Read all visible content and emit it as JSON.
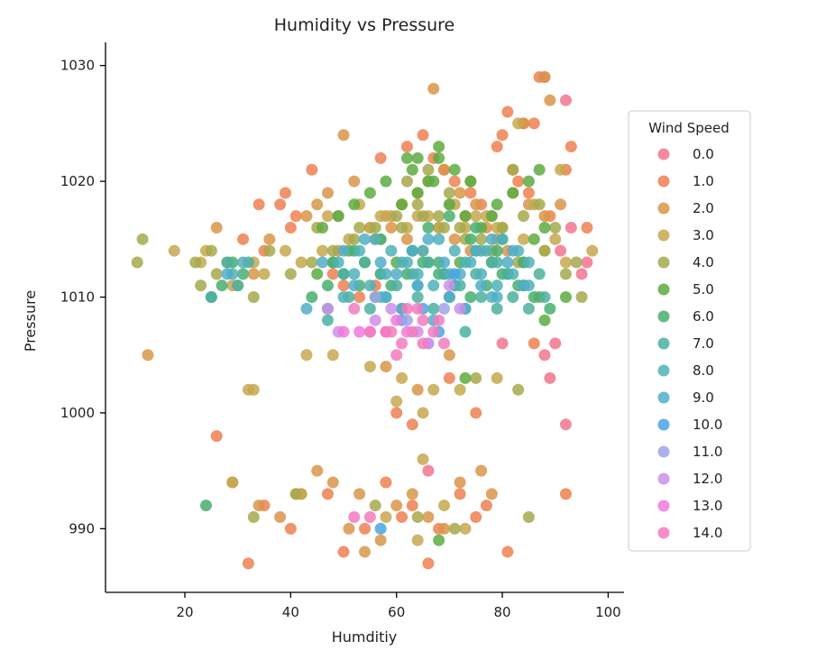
{
  "chart_data": {
    "type": "scatter",
    "title": "Humidity vs Pressure",
    "xlabel": "Humditiy",
    "ylabel": "Pressure",
    "xlim": [
      5,
      103
    ],
    "ylim": [
      984.5,
      1032
    ],
    "xticks": [
      "20",
      "40",
      "60",
      "80",
      "100"
    ],
    "yticks": [
      "990",
      "1000",
      "1010",
      "1020",
      "1030"
    ],
    "grid": false,
    "legend": {
      "title": "Wind Speed",
      "placement": "right"
    },
    "series": [
      {
        "name": "0.0",
        "color": "#f2758e",
        "x": [
          92,
          93,
          91,
          96,
          90,
          95,
          88,
          89,
          92,
          70,
          80,
          66
        ],
        "y": [
          1027,
          1016,
          1014,
          1013,
          1006,
          1012,
          1005,
          1003,
          999,
          1010,
          1006,
          995
        ]
      },
      {
        "name": "1.0",
        "color": "#ef8051",
        "x": [
          87,
          88,
          81,
          84,
          86,
          93,
          92,
          34,
          38,
          39,
          40,
          41,
          44,
          35,
          31,
          57,
          62,
          65,
          67,
          69,
          71,
          74,
          73,
          76,
          79,
          80,
          82,
          83,
          85,
          89,
          48,
          50,
          53,
          56,
          26,
          32,
          35,
          40,
          47,
          50,
          54,
          58,
          61,
          63,
          66,
          68,
          72,
          75,
          77,
          81,
          63,
          70,
          86,
          75,
          60,
          92,
          96
        ],
        "y": [
          1029,
          1029,
          1026,
          1025,
          1025,
          1023,
          1021,
          1018,
          1018,
          1019,
          1016,
          1017,
          1021,
          1014,
          1015,
          1022,
          1023,
          1024,
          1022,
          1021,
          1020,
          1019,
          1017,
          1018,
          1023,
          1024,
          1021,
          1020,
          1019,
          1017,
          1012,
          1011,
          1010,
          1011,
          998,
          987,
          992,
          990,
          993,
          988,
          990,
          994,
          991,
          992,
          987,
          990,
          993,
          991,
          992,
          988,
          999,
          1003,
          1006,
          1000,
          1000,
          993,
          1016
        ]
      },
      {
        "name": "2.0",
        "color": "#d9954a",
        "x": [
          67,
          88,
          89,
          91,
          84,
          50,
          13,
          33,
          36,
          26,
          43,
          45,
          47,
          52,
          55,
          58,
          61,
          64,
          66,
          69,
          72,
          75,
          78,
          82,
          85,
          88,
          49,
          56,
          59,
          62,
          65,
          68,
          71,
          74,
          77,
          79,
          81,
          84,
          29,
          42,
          45,
          51,
          54,
          57,
          60,
          63,
          66,
          69,
          72,
          76,
          78,
          34,
          38,
          41,
          48,
          53,
          58,
          64,
          70
        ],
        "y": [
          1028,
          1029,
          1027,
          1018,
          1025,
          1024,
          1005,
          1012,
          1015,
          1016,
          1017,
          1018,
          1019,
          1020,
          1016,
          1017,
          1018,
          1019,
          1020,
          1021,
          1019,
          1018,
          1017,
          1019,
          1018,
          1017,
          1014,
          1015,
          1016,
          1015,
          1014,
          1016,
          1015,
          1014,
          1016,
          1015,
          1014,
          1013,
          994,
          993,
          995,
          990,
          988,
          989,
          992,
          993,
          991,
          990,
          994,
          995,
          993,
          992,
          991,
          993,
          994,
          993,
          1004,
          1002,
          1005
        ]
      },
      {
        "name": "3.0",
        "color": "#c5a84f",
        "x": [
          83,
          91,
          18,
          23,
          24,
          29,
          33,
          35,
          39,
          42,
          46,
          51,
          55,
          59,
          62,
          66,
          70,
          73,
          77,
          80,
          84,
          88,
          92,
          97,
          47,
          53,
          57,
          61,
          64,
          68,
          71,
          75,
          79,
          86,
          90,
          32,
          43,
          60,
          65,
          72,
          79,
          58,
          64,
          69,
          73,
          29,
          42,
          48,
          55,
          61,
          67,
          33,
          65
        ],
        "y": [
          1025,
          1021,
          1014,
          1013,
          1014,
          1011,
          1013,
          1012,
          1014,
          1013,
          1014,
          1015,
          1016,
          1017,
          1016,
          1017,
          1018,
          1016,
          1017,
          1016,
          1015,
          1014,
          1013,
          1014,
          1017,
          1018,
          1017,
          1018,
          1017,
          1016,
          1018,
          1017,
          1016,
          1018,
          1015,
          1002,
          1005,
          1001,
          1000,
          1002,
          1003,
          991,
          989,
          992,
          990,
          994,
          993,
          1005,
          1004,
          1003,
          1002,
          1002,
          996
        ]
      },
      {
        "name": "4.0",
        "color": "#a6a94b",
        "x": [
          12,
          11,
          22,
          23,
          25,
          26,
          28,
          30,
          33,
          36,
          40,
          44,
          48,
          52,
          56,
          60,
          64,
          68,
          72,
          76,
          80,
          84,
          87,
          90,
          94,
          45,
          49,
          53,
          57,
          61,
          65,
          69,
          73,
          78,
          83,
          88,
          92,
          95,
          62,
          66,
          70,
          74,
          82,
          33,
          41,
          56,
          64,
          71,
          85,
          83,
          75
        ],
        "y": [
          1015,
          1013,
          1013,
          1011,
          1014,
          1012,
          1013,
          1011,
          1010,
          1014,
          1012,
          1013,
          1014,
          1015,
          1016,
          1017,
          1018,
          1017,
          1016,
          1015,
          1016,
          1017,
          1018,
          1016,
          1013,
          1016,
          1017,
          1016,
          1015,
          1016,
          1017,
          1016,
          1015,
          1014,
          1013,
          1014,
          1012,
          1010,
          1020,
          1021,
          1019,
          1020,
          1021,
          991,
          993,
          992,
          991,
          990,
          991,
          1002,
          1003
        ]
      },
      {
        "name": "5.0",
        "color": "#5eac41",
        "x": [
          62,
          63,
          66,
          68,
          46,
          49,
          52,
          55,
          58,
          61,
          64,
          67,
          70,
          73,
          76,
          79,
          82,
          85,
          87,
          88,
          45,
          48,
          51,
          54,
          57,
          60,
          63,
          66,
          69,
          72,
          75,
          78,
          81,
          84,
          87,
          64,
          68,
          71,
          74,
          86,
          88,
          78,
          92,
          73,
          68
        ],
        "y": [
          1022,
          1021,
          1020,
          1022,
          1016,
          1017,
          1018,
          1019,
          1020,
          1018,
          1019,
          1020,
          1018,
          1017,
          1016,
          1018,
          1019,
          1020,
          1021,
          1016,
          1012,
          1013,
          1014,
          1013,
          1012,
          1013,
          1014,
          1013,
          1012,
          1013,
          1014,
          1013,
          1012,
          1011,
          1010,
          1022,
          1023,
          1021,
          1020,
          1015,
          1008,
          1017,
          1010,
          1003,
          989
        ]
      },
      {
        "name": "6.0",
        "color": "#48af6e",
        "x": [
          24,
          25,
          27,
          29,
          31,
          44,
          47,
          50,
          53,
          56,
          59,
          62,
          65,
          68,
          71,
          74,
          77,
          80,
          83,
          86,
          89,
          48,
          52,
          57,
          63,
          68,
          74,
          79,
          84,
          66,
          70,
          75,
          80
        ],
        "y": [
          992,
          1010,
          1011,
          1013,
          1012,
          1010,
          1011,
          1012,
          1011,
          1010,
          1011,
          1012,
          1013,
          1012,
          1011,
          1010,
          1011,
          1012,
          1011,
          1010,
          1009,
          1013,
          1014,
          1015,
          1014,
          1013,
          1015,
          1014,
          1013,
          1016,
          1017,
          1016,
          1015
        ]
      },
      {
        "name": "7.0",
        "color": "#4cb0a0",
        "x": [
          25,
          28,
          30,
          32,
          47,
          51,
          55,
          58,
          61,
          64,
          67,
          70,
          73,
          76,
          79,
          82,
          85,
          88,
          50,
          54,
          57,
          60,
          63,
          66,
          69,
          72,
          75,
          78,
          81,
          84,
          87,
          73,
          47,
          76,
          79
        ],
        "y": [
          1010,
          1013,
          1011,
          1013,
          1009,
          1010,
          1009,
          1010,
          1009,
          1010,
          1009,
          1010,
          1009,
          1010,
          1009,
          1010,
          1009,
          1010,
          1012,
          1013,
          1012,
          1011,
          1012,
          1013,
          1012,
          1011,
          1012,
          1013,
          1012,
          1011,
          1012,
          1007,
          1008,
          1014,
          1013
        ]
      },
      {
        "name": "8.0",
        "color": "#4fb1b8",
        "x": [
          29,
          31,
          49,
          52,
          55,
          58,
          61,
          64,
          67,
          70,
          73,
          76,
          79,
          82,
          85,
          53,
          56,
          59,
          62,
          65,
          68,
          71,
          74,
          77,
          80,
          83,
          50,
          57,
          64,
          71,
          78,
          85
        ],
        "y": [
          1012,
          1013,
          1013,
          1012,
          1011,
          1012,
          1013,
          1012,
          1011,
          1012,
          1013,
          1012,
          1011,
          1012,
          1013,
          1014,
          1015,
          1014,
          1013,
          1014,
          1015,
          1014,
          1013,
          1014,
          1015,
          1014,
          1010,
          1010,
          1011,
          1011,
          1010,
          1011
        ]
      },
      {
        "name": "9.0",
        "color": "#51aec9",
        "x": [
          28,
          43,
          46,
          50,
          54,
          57,
          60,
          63,
          66,
          69,
          72,
          75,
          78,
          81,
          84,
          52,
          58,
          64,
          70,
          76,
          82,
          61,
          67,
          73,
          79
        ],
        "y": [
          1012,
          1009,
          1013,
          1014,
          1015,
          1013,
          1012,
          1014,
          1015,
          1013,
          1012,
          1014,
          1015,
          1013,
          1011,
          1011,
          1010,
          1011,
          1010,
          1011,
          1014,
          1009,
          1008,
          1009,
          1010
        ]
      },
      {
        "name": "10.0",
        "color": "#4ba4e2",
        "x": [
          57,
          61,
          65,
          68,
          71
        ],
        "y": [
          990,
          1008,
          1009,
          1007,
          1012
        ]
      },
      {
        "name": "11.0",
        "color": "#9fa5e8",
        "x": [
          62,
          66,
          69,
          56
        ],
        "y": [
          1008,
          1006,
          1009,
          1010
        ]
      },
      {
        "name": "12.0",
        "color": "#cc8fe9",
        "x": [
          47,
          49,
          64,
          66,
          70,
          72,
          56,
          59
        ],
        "y": [
          1009,
          1007,
          1007,
          1006,
          1011,
          1009,
          1008,
          1009
        ]
      },
      {
        "name": "13.0",
        "color": "#ef79de",
        "x": [
          50,
          53,
          55,
          58,
          60,
          62
        ],
        "y": [
          1007,
          1007,
          1007,
          1007,
          1008,
          1007
        ]
      },
      {
        "name": "14.0",
        "color": "#f37bbd",
        "x": [
          52,
          55,
          59,
          61,
          63,
          65,
          67,
          69,
          62,
          65,
          58,
          60,
          64,
          68,
          55,
          52
        ],
        "y": [
          1009,
          1007,
          1007,
          1006,
          1007,
          1006,
          1007,
          1006,
          1009,
          1008,
          1007,
          1005,
          1009,
          1008,
          991,
          991
        ]
      }
    ]
  }
}
